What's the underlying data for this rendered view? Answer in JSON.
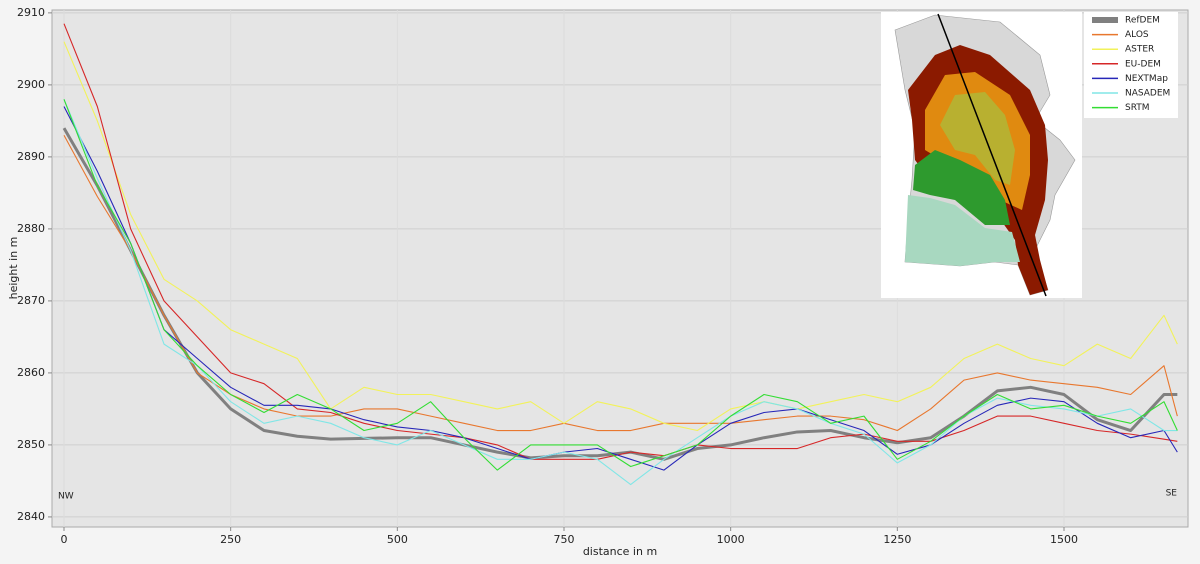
{
  "chart_data": {
    "type": "line",
    "xlabel": "distance in m",
    "ylabel": "height in m",
    "annotations": [
      "NW",
      "SE"
    ],
    "x": [
      0,
      50,
      100,
      150,
      200,
      250,
      300,
      350,
      400,
      450,
      500,
      550,
      600,
      650,
      700,
      750,
      800,
      850,
      900,
      950,
      1000,
      1050,
      1100,
      1150,
      1200,
      1250,
      1300,
      1350,
      1400,
      1450,
      1500,
      1550,
      1600,
      1650,
      1670
    ],
    "series": [
      {
        "name": "RefDEM",
        "color": "#808080",
        "values": [
          2894,
          2886,
          2877,
          2868,
          2860,
          2855,
          2852,
          2851.2,
          2850.8,
          2850.9,
          2851,
          2851,
          2850,
          2849,
          2848.2,
          2848.5,
          2848.5,
          2849,
          2848,
          2849.5,
          2850,
          2851,
          2851.8,
          2852,
          2851,
          2850.3,
          2851,
          2854,
          2857.5,
          2858,
          2857,
          2853.5,
          2852,
          2857,
          2857
        ]
      },
      {
        "name": "ALOS",
        "color": "#e8772e",
        "values": [
          2893,
          2884.5,
          2877,
          2868,
          2860,
          2857,
          2855,
          2854,
          2854,
          2855,
          2855,
          2854,
          2853,
          2852,
          2852,
          2853,
          2852,
          2852,
          2853,
          2853,
          2853,
          2853.5,
          2854,
          2854,
          2853.5,
          2852,
          2855,
          2859,
          2860,
          2859,
          2858.5,
          2858,
          2857,
          2861,
          2854
        ]
      },
      {
        "name": "ASTER",
        "color": "#f2f25a",
        "values": [
          2906,
          2895,
          2882,
          2873,
          2870,
          2866,
          2864,
          2862,
          2855,
          2858,
          2857,
          2857,
          2856,
          2855,
          2856,
          2853,
          2856,
          2855,
          2853,
          2852,
          2855,
          2856,
          2855,
          2856,
          2857,
          2856,
          2858,
          2862,
          2864,
          2862,
          2861,
          2864,
          2862,
          2868,
          2864
        ]
      },
      {
        "name": "EU-DEM",
        "color": "#d62728",
        "values": [
          2908.5,
          2897,
          2880,
          2870,
          2865,
          2860,
          2858.5,
          2855,
          2854.5,
          2853,
          2852,
          2851.5,
          2851,
          2850,
          2848,
          2848,
          2848,
          2849,
          2848.5,
          2850,
          2849.5,
          2849.5,
          2849.5,
          2851,
          2851.5,
          2850.5,
          2850.5,
          2852,
          2854,
          2854,
          2853,
          2852,
          2851.5,
          2850.8,
          2850.5
        ]
      },
      {
        "name": "NEXTMap",
        "color": "#2727b8",
        "values": [
          2897,
          2888,
          2878,
          2866,
          2862,
          2858,
          2855.5,
          2855.5,
          2855,
          2853.5,
          2852.5,
          2852,
          2851,
          2849.5,
          2848,
          2849,
          2849.5,
          2848,
          2846.5,
          2850,
          2853,
          2854.5,
          2855,
          2853.5,
          2852,
          2848.7,
          2850,
          2853,
          2855.5,
          2856.5,
          2856,
          2853,
          2851,
          2852,
          2849
        ]
      },
      {
        "name": "NASADEM",
        "color": "#80e6e6",
        "values": [
          2898,
          2887,
          2877,
          2864,
          2861,
          2856,
          2853,
          2854,
          2853,
          2851,
          2850,
          2852,
          2850,
          2848,
          2848,
          2849,
          2848,
          2844.5,
          2848,
          2851,
          2854,
          2856,
          2855,
          2853,
          2851.5,
          2847.5,
          2850,
          2854,
          2856.5,
          2855.5,
          2855,
          2854,
          2855,
          2852,
          2852
        ]
      },
      {
        "name": "SRTM",
        "color": "#33dd33",
        "values": [
          2898,
          2886,
          2878,
          2866,
          2861,
          2857,
          2854.5,
          2857,
          2855,
          2852,
          2853,
          2856,
          2851,
          2846.5,
          2850,
          2850,
          2850,
          2847,
          2848.5,
          2850,
          2854,
          2857,
          2856,
          2853,
          2854,
          2848,
          2850.5,
          2854,
          2857,
          2855,
          2855.5,
          2854,
          2853,
          2856,
          2852
        ]
      }
    ],
    "xlim": [
      -18,
      1686
    ],
    "ylim": [
      2838.6,
      2910.4
    ],
    "xticks": [
      0,
      250,
      500,
      750,
      1000,
      1250,
      1500
    ],
    "yticks": [
      2840,
      2850,
      2860,
      2870,
      2880,
      2890,
      2900,
      2910
    ],
    "grid": true,
    "legend": "upper right"
  }
}
